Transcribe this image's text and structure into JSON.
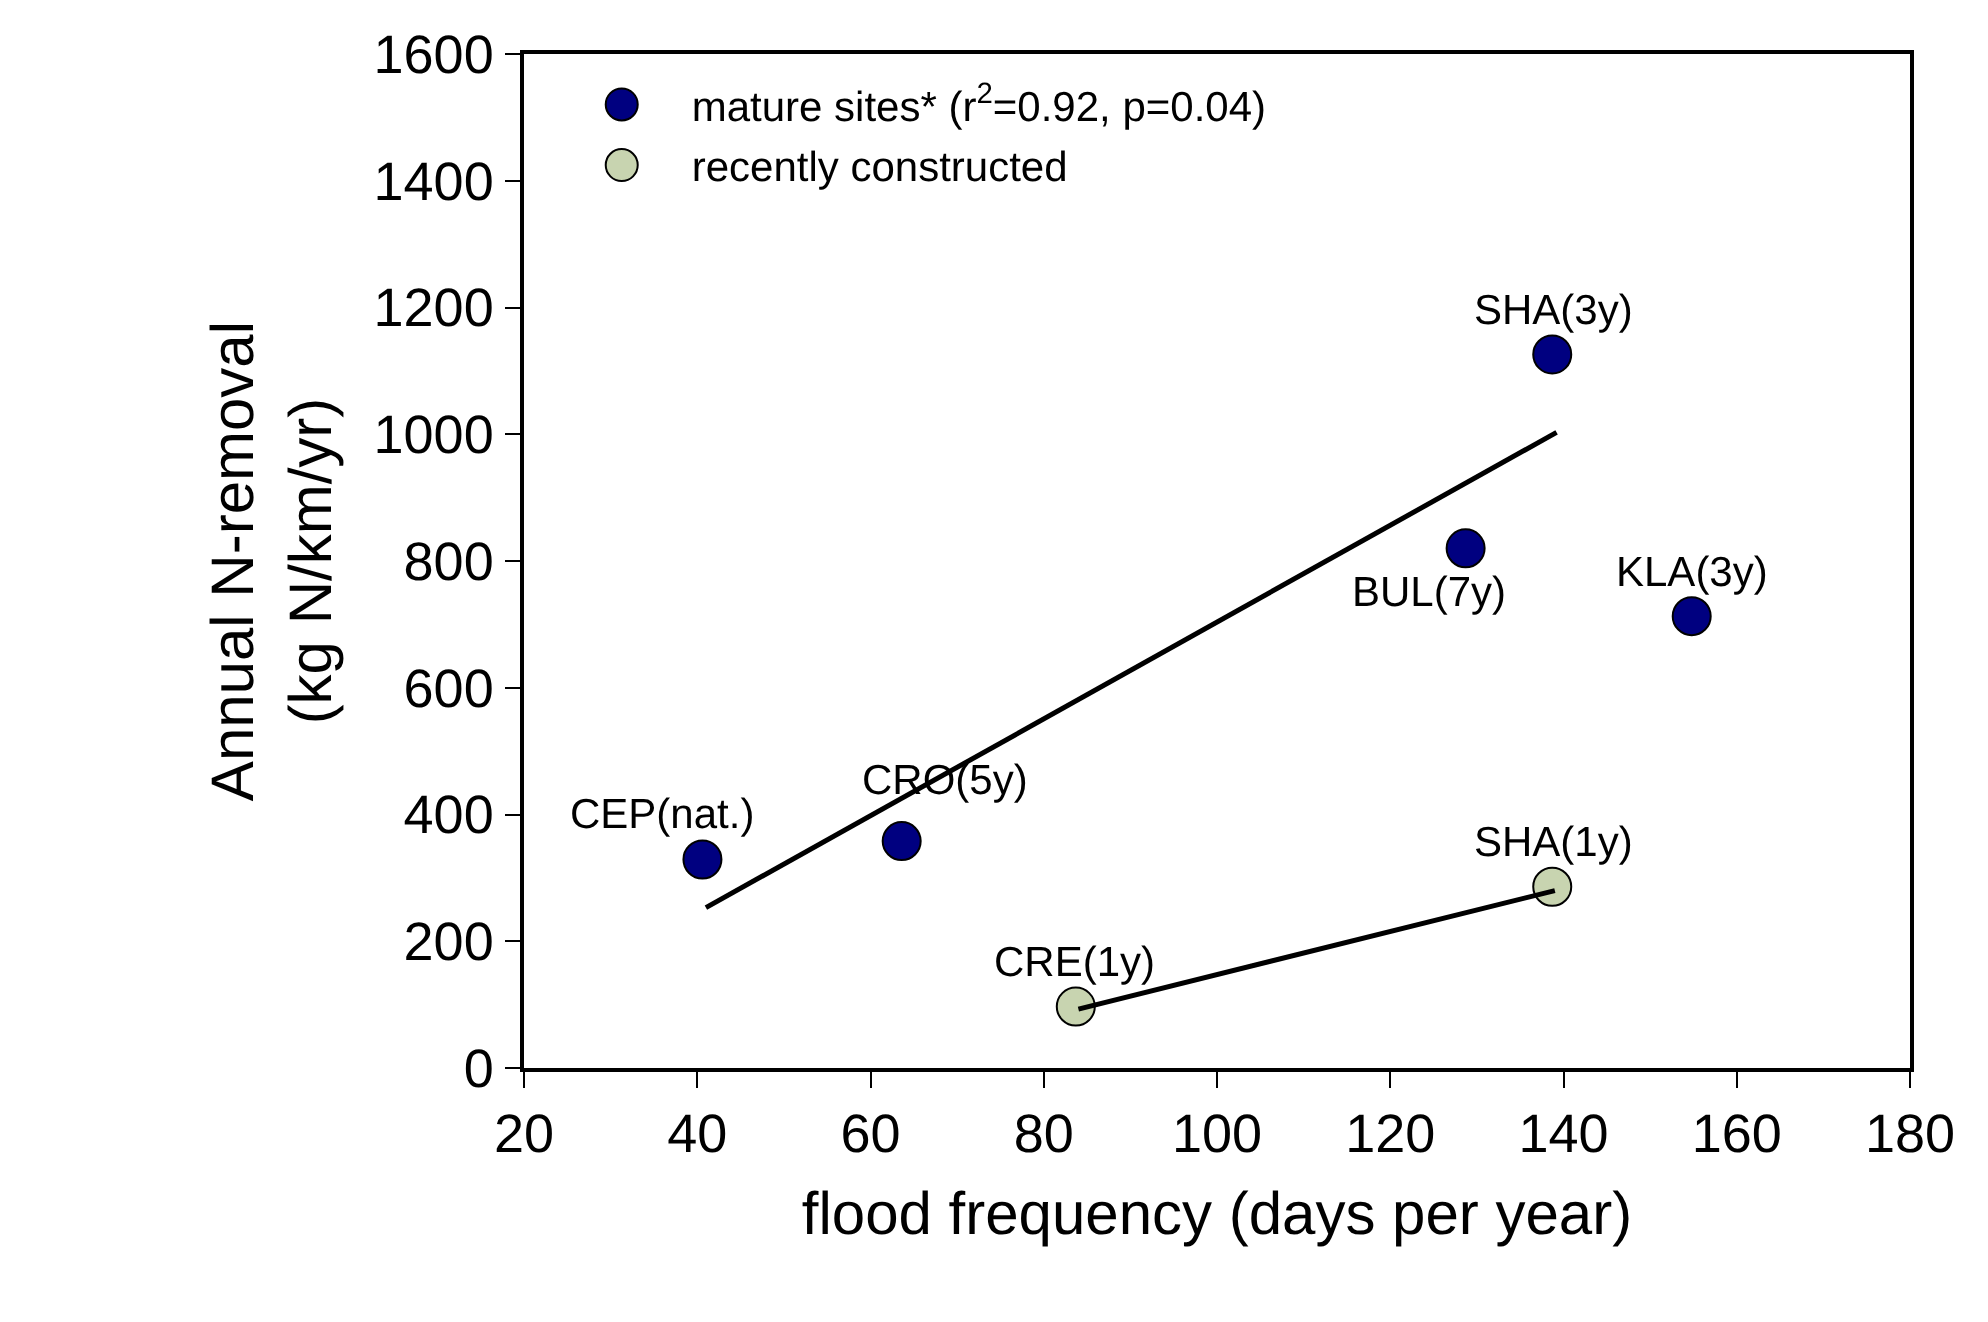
{
  "chart_data": {
    "type": "scatter",
    "xlabel": "flood frequency (days per year)",
    "ylabel": "Annual N-removal\n(kg N/km/yr)",
    "series": [
      {
        "name": "mature sites* (r$^{2}$=0.92, p=0.04)",
        "color": "#000080",
        "x": [
          40.6,
          63.6,
          128.7,
          138.7,
          154.8
        ],
        "values": [
          329,
          358,
          820,
          1126,
          713
        ]
      },
      {
        "name": "recently constructed",
        "color": "#c8d4b0",
        "x": [
          83.7,
          138.7
        ],
        "values": [
          97,
          286
        ]
      },
      {
        "type": "line",
        "marker": "none",
        "color": "#000000",
        "x": [
          41,
          139.2
        ],
        "values": [
          253,
          1003
        ]
      },
      {
        "type": "line",
        "marker": "none",
        "color": "#000000",
        "x": [
          84,
          139
        ],
        "values": [
          93,
          280
        ]
      }
    ],
    "annotations": [
      {
        "text": "CEP(nat.)",
        "x": 40.6,
        "y": 329
      },
      {
        "text": "CRO(5y)",
        "x": 63.6,
        "y": 358
      },
      {
        "text": "BUL(7y)",
        "x": 128.7,
        "y": 820
      },
      {
        "text": "SHA(3y)",
        "x": 138.7,
        "y": 1126
      },
      {
        "text": "KLA(3y)",
        "x": 154.8,
        "y": 713
      },
      {
        "text": "CRE(1y)",
        "x": 83.7,
        "y": 97
      },
      {
        "text": "SHA(1y)",
        "x": 138.7,
        "y": 286
      }
    ],
    "xlim": [
      20,
      180
    ],
    "xticks": [
      20,
      40,
      60,
      80,
      100,
      120,
      140,
      160,
      180
    ],
    "ylim": [
      0,
      1600
    ],
    "yticks": [
      0,
      200,
      400,
      600,
      800,
      1000,
      1200,
      1400,
      1600
    ],
    "legend": "top left",
    "marker": "circle"
  }
}
